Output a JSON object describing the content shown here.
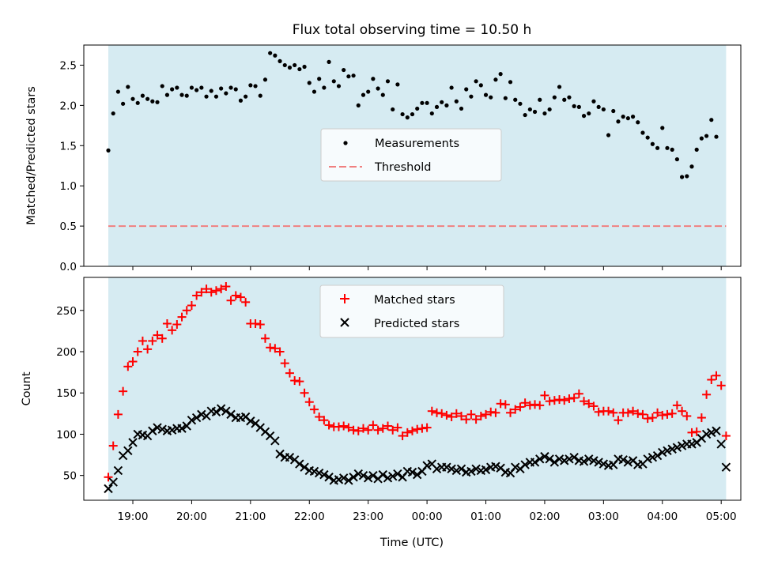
{
  "chart_data": [
    {
      "type": "scatter",
      "title": "Flux total observing time = 10.50 h",
      "xlabel": "",
      "ylabel": "Matched/Predicted stars",
      "ylim": [
        0,
        2.75
      ],
      "yticks": [
        "0.0",
        "0.5",
        "1.0",
        "1.5",
        "2.0",
        "2.5"
      ],
      "observing_span": [
        "18:35",
        "05:05"
      ],
      "legend": {
        "placement": "center",
        "entries": [
          "Measurements",
          "Threshold"
        ]
      },
      "threshold": 0.5,
      "colors": {
        "points": "#000000",
        "threshold": "#f08080",
        "span": "#add8e6"
      },
      "series": [
        {
          "name": "Measurements",
          "x_start": "18:35",
          "x_step_minutes": 5,
          "values": [
            1.44,
            1.9,
            2.17,
            2.02,
            2.23,
            2.08,
            2.03,
            2.12,
            2.08,
            2.05,
            2.04,
            2.24,
            2.13,
            2.2,
            2.22,
            2.13,
            2.12,
            2.22,
            2.19,
            2.22,
            2.11,
            2.18,
            2.11,
            2.21,
            2.15,
            2.22,
            2.2,
            2.06,
            2.11,
            2.25,
            2.24,
            2.12,
            2.32,
            2.65,
            2.62,
            2.55,
            2.5,
            2.47,
            2.5,
            2.45,
            2.48,
            2.28,
            2.17,
            2.33,
            2.22,
            2.54,
            2.3,
            2.24,
            2.44,
            2.36,
            2.37,
            2.0,
            2.13,
            2.17,
            2.33,
            2.21,
            2.13,
            2.3,
            1.95,
            2.26,
            1.89,
            1.85,
            1.89,
            1.96,
            2.03,
            2.03,
            1.9,
            1.98,
            2.04,
            2.0,
            2.22,
            2.05,
            1.96,
            2.2,
            2.11,
            2.3,
            2.25,
            2.13,
            2.1,
            2.32,
            2.39,
            2.09,
            2.29,
            2.07,
            2.02,
            1.88,
            1.95,
            1.92,
            2.07,
            1.9,
            1.95,
            2.1,
            2.23,
            2.07,
            2.1,
            1.99,
            1.98,
            1.87,
            1.9,
            2.05,
            1.98,
            1.95,
            1.63,
            1.93,
            1.8,
            1.86,
            1.84,
            1.86,
            1.79,
            1.66,
            1.6,
            1.52,
            1.47,
            1.72,
            1.47,
            1.45,
            1.33,
            1.11,
            1.12,
            1.24,
            1.45,
            1.59,
            1.62,
            1.82,
            1.61
          ]
        }
      ]
    },
    {
      "type": "scatter",
      "title": "",
      "xlabel": "Time (UTC)",
      "ylabel": "Count",
      "ylim": [
        20,
        290
      ],
      "yticks": [
        "50",
        "100",
        "150",
        "200",
        "250"
      ],
      "xticks": [
        "19:00",
        "20:00",
        "21:00",
        "22:00",
        "23:00",
        "00:00",
        "01:00",
        "02:00",
        "03:00",
        "04:00",
        "05:00"
      ],
      "xlim": [
        "18:10",
        "05:20"
      ],
      "legend": {
        "placement": "top-center",
        "entries": [
          "Matched stars",
          "Predicted stars"
        ]
      },
      "colors": {
        "matched": "#ff0000",
        "predicted": "#000000",
        "span": "#add8e6"
      },
      "series": [
        {
          "name": "Matched stars",
          "x_start": "18:35",
          "x_step_minutes": 5,
          "values": [
            48,
            86,
            124,
            152,
            182,
            188,
            200,
            213,
            203,
            213,
            220,
            216,
            234,
            226,
            233,
            242,
            250,
            256,
            268,
            272,
            276,
            272,
            274,
            276,
            279,
            262,
            268,
            266,
            260,
            234,
            234,
            233,
            216,
            205,
            204,
            200,
            186,
            174,
            165,
            164,
            150,
            139,
            130,
            121,
            117,
            111,
            109,
            109,
            110,
            108,
            105,
            104,
            107,
            105,
            111,
            105,
            107,
            110,
            105,
            108,
            98,
            102,
            104,
            106,
            107,
            108,
            128,
            126,
            125,
            123,
            121,
            125,
            122,
            118,
            124,
            118,
            122,
            124,
            127,
            126,
            137,
            136,
            126,
            130,
            133,
            138,
            135,
            136,
            135,
            147,
            140,
            141,
            142,
            141,
            143,
            144,
            149,
            140,
            137,
            134,
            127,
            128,
            128,
            126,
            117,
            126,
            126,
            128,
            125,
            124,
            119,
            120,
            126,
            123,
            124,
            125,
            135,
            128,
            122,
            102,
            103,
            120,
            148,
            166,
            171,
            159,
            98
          ]
        },
        {
          "name": "Predicted stars",
          "x_start": "18:35",
          "x_step_minutes": 5,
          "values": [
            34,
            42,
            56,
            74,
            80,
            90,
            100,
            99,
            98,
            104,
            108,
            106,
            104,
            105,
            107,
            107,
            110,
            117,
            120,
            124,
            122,
            128,
            127,
            131,
            128,
            124,
            120,
            120,
            121,
            116,
            113,
            108,
            103,
            98,
            92,
            76,
            72,
            72,
            69,
            64,
            60,
            56,
            55,
            53,
            51,
            48,
            44,
            45,
            47,
            44,
            48,
            52,
            50,
            47,
            50,
            46,
            51,
            47,
            49,
            52,
            48,
            55,
            54,
            51,
            55,
            62,
            64,
            58,
            60,
            60,
            58,
            56,
            58,
            54,
            55,
            58,
            56,
            57,
            60,
            61,
            59,
            54,
            53,
            60,
            58,
            63,
            66,
            66,
            70,
            73,
            70,
            66,
            70,
            68,
            70,
            72,
            68,
            67,
            70,
            68,
            66,
            64,
            62,
            63,
            70,
            69,
            66,
            68,
            63,
            64,
            70,
            72,
            74,
            78,
            80,
            82,
            84,
            86,
            88,
            88,
            90,
            95,
            100,
            102,
            104,
            88,
            60
          ]
        }
      ]
    }
  ]
}
